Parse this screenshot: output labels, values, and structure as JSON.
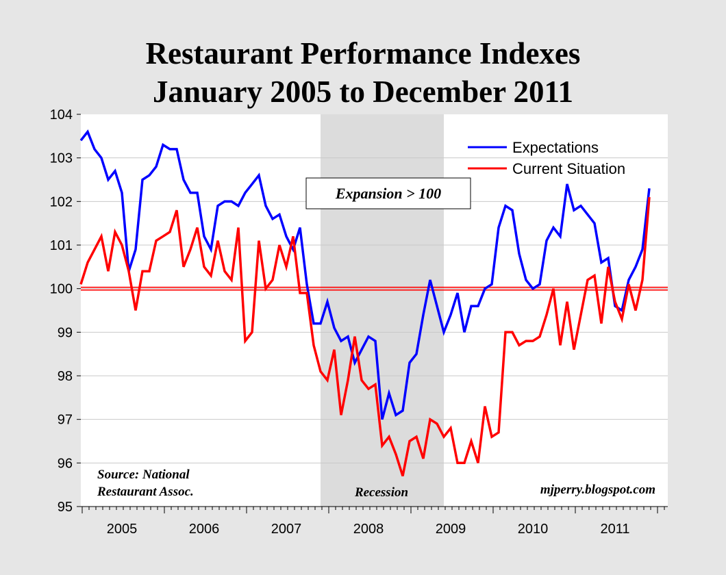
{
  "chart_data": {
    "type": "line",
    "title": [
      "Restaurant Performance Indexes",
      "January 2005 to December 2011"
    ],
    "xlabel": "",
    "ylabel": "",
    "ylim": [
      95,
      104
    ],
    "yticks": [
      "95",
      "96",
      "97",
      "98",
      "99",
      "100",
      "101",
      "102",
      "103",
      "104"
    ],
    "x_start": "2005-01",
    "x_end": "2011-12",
    "xtick_labels": [
      "2005",
      "2006",
      "2007",
      "2008",
      "2009",
      "2010",
      "2011"
    ],
    "grid": true,
    "legend_position": "top-right",
    "reference_line": {
      "value": 100,
      "color": "#ff0000"
    },
    "shaded_region": {
      "label": "Recession",
      "from": "2007-12",
      "to": "2009-06",
      "color": "#dcdcdc"
    },
    "annotations": {
      "expansion": "Expansion > 100",
      "source_line1": "Source: National",
      "source_line2": "Restaurant Assoc.",
      "credit": "mjperry.blogspot.com"
    },
    "series": [
      {
        "name": "Expectations",
        "color": "#0000ff",
        "values": [
          103.4,
          103.6,
          103.2,
          103.0,
          102.5,
          102.7,
          102.2,
          100.4,
          100.9,
          102.5,
          102.6,
          102.8,
          103.3,
          103.2,
          103.2,
          102.5,
          102.2,
          102.2,
          101.2,
          100.9,
          101.9,
          102.0,
          102.0,
          101.9,
          102.2,
          102.4,
          102.6,
          101.9,
          101.6,
          101.7,
          101.2,
          100.9,
          101.4,
          100.1,
          99.2,
          99.2,
          99.7,
          99.1,
          98.8,
          98.9,
          98.3,
          98.6,
          98.9,
          98.8,
          97.0,
          97.6,
          97.1,
          97.2,
          98.3,
          98.5,
          99.4,
          100.2,
          99.6,
          99.0,
          99.4,
          99.9,
          99.0,
          99.6,
          99.6,
          100.0,
          100.1,
          101.4,
          101.9,
          101.8,
          100.8,
          100.2,
          100.0,
          100.1,
          101.1,
          101.4,
          101.2,
          102.4,
          101.8,
          101.9,
          101.7,
          101.5,
          100.6,
          100.7,
          99.6,
          99.5,
          100.2,
          100.5,
          100.9,
          102.3
        ]
      },
      {
        "name": "Current Situation",
        "color": "#ff0000",
        "values": [
          100.1,
          100.6,
          100.9,
          101.2,
          100.4,
          101.3,
          101.0,
          100.4,
          99.5,
          100.4,
          100.4,
          101.1,
          101.2,
          101.3,
          101.8,
          100.5,
          100.9,
          101.4,
          100.5,
          100.3,
          101.1,
          100.4,
          100.2,
          101.4,
          98.8,
          99.0,
          101.1,
          100.0,
          100.2,
          101.0,
          100.5,
          101.2,
          99.9,
          99.9,
          98.7,
          98.1,
          97.9,
          98.6,
          97.1,
          97.9,
          98.9,
          97.9,
          97.7,
          97.8,
          96.4,
          96.6,
          96.2,
          95.7,
          96.5,
          96.6,
          96.1,
          97.0,
          96.9,
          96.6,
          96.8,
          96.0,
          96.0,
          96.5,
          96.0,
          97.3,
          96.6,
          96.7,
          99.0,
          99.0,
          98.7,
          98.8,
          98.8,
          98.9,
          99.4,
          100.0,
          98.7,
          99.7,
          98.6,
          99.4,
          100.2,
          100.3,
          99.2,
          100.5,
          99.7,
          99.3,
          100.1,
          99.5,
          100.2,
          102.1
        ]
      }
    ]
  }
}
